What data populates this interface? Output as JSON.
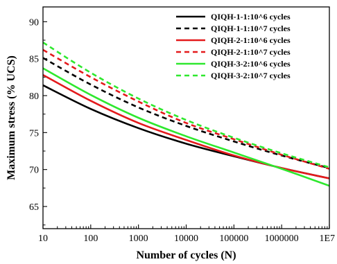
{
  "chart_data": {
    "type": "line",
    "xlabel": "Number of cycles (N)",
    "ylabel": "Maximum stress (% UCS)",
    "x_scale": "log",
    "xlim": [
      10,
      10000000
    ],
    "ylim": [
      62,
      92
    ],
    "x_ticks": [
      10,
      100,
      1000,
      10000,
      100000,
      1000000,
      10000000
    ],
    "x_tick_labels": [
      "10",
      "100",
      "1000",
      "10000",
      "100000",
      "1000000",
      "1E7"
    ],
    "y_ticks": [
      65,
      70,
      75,
      80,
      85,
      90
    ],
    "y_tick_labels": [
      "65",
      "70",
      "75",
      "80",
      "85",
      "90"
    ],
    "grid": false,
    "legend_position": "top-right",
    "series": [
      {
        "name": "QIQH-1-1:10^6 cycles",
        "color": "#000000",
        "dash": "solid",
        "x": [
          10,
          100,
          1000,
          10000,
          100000,
          1000000,
          10000000
        ],
        "y": [
          81.4,
          78.2,
          75.6,
          73.5,
          71.8,
          70.2,
          68.8
        ]
      },
      {
        "name": "QIQH-1-1:10^7 cycles",
        "color": "#000000",
        "dash": "dashed",
        "x": [
          10,
          100,
          1000,
          10000,
          100000,
          1000000,
          10000000
        ],
        "y": [
          85.1,
          81.5,
          78.4,
          75.9,
          73.8,
          71.9,
          70.2
        ]
      },
      {
        "name": "QIQH-2-1:10^6 cycles",
        "color": "#e41a1c",
        "dash": "solid",
        "x": [
          10,
          100,
          1000,
          10000,
          100000,
          1000000,
          10000000
        ],
        "y": [
          82.8,
          79.3,
          76.3,
          74.0,
          71.9,
          70.2,
          68.8
        ]
      },
      {
        "name": "QIQH-2-1:10^7 cycles",
        "color": "#e41a1c",
        "dash": "dashed",
        "x": [
          10,
          100,
          1000,
          10000,
          100000,
          1000000,
          10000000
        ],
        "y": [
          86.2,
          82.5,
          79.2,
          76.3,
          74.1,
          72.0,
          70.1
        ]
      },
      {
        "name": "QIQH-3-2:10^6 cycles",
        "color": "#2ee82e",
        "dash": "solid",
        "x": [
          10,
          100,
          1000,
          10000,
          100000,
          1000000,
          10000000
        ],
        "y": [
          83.7,
          80.1,
          77.0,
          74.5,
          72.3,
          70.1,
          67.8
        ]
      },
      {
        "name": "QIQH-3-2:10^7 cycles",
        "color": "#2ee82e",
        "dash": "dashed",
        "x": [
          10,
          100,
          1000,
          10000,
          100000,
          1000000,
          10000000
        ],
        "y": [
          87.2,
          83.1,
          79.6,
          76.7,
          74.3,
          72.2,
          70.3
        ]
      }
    ]
  }
}
